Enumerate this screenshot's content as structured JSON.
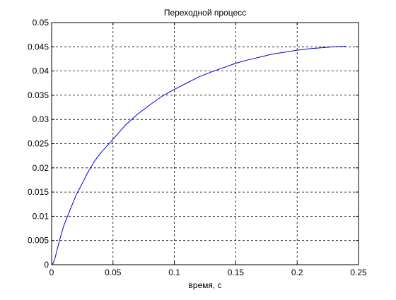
{
  "chart_data": {
    "type": "line",
    "title": "Переходной процесс",
    "xlabel": "время, с",
    "ylabel": "",
    "xlim": [
      0,
      0.25
    ],
    "ylim": [
      0,
      0.05
    ],
    "grid": true,
    "x_ticks": [
      0,
      0.05,
      0.1,
      0.15,
      0.2,
      0.25
    ],
    "x_tick_labels": [
      "0",
      "0.05",
      "0.1",
      "0.15",
      "0.2",
      "0.25"
    ],
    "y_ticks": [
      0,
      0.005,
      0.01,
      0.015,
      0.02,
      0.025,
      0.03,
      0.035,
      0.04,
      0.045,
      0.05
    ],
    "y_tick_labels": [
      "0",
      "0.005",
      "0.01",
      "0.015",
      "0.02",
      "0.025",
      "0.03",
      "0.035",
      "0.04",
      "0.045",
      "0.05"
    ],
    "series": [
      {
        "color": "#0000cc",
        "x": [
          0,
          0.001,
          0.002,
          0.003,
          0.005,
          0.0075,
          0.01,
          0.015,
          0.02,
          0.025,
          0.03,
          0.035,
          0.04,
          0.05,
          0.06,
          0.07,
          0.08,
          0.09,
          0.1,
          0.11,
          0.12,
          0.13,
          0.14,
          0.15,
          0.16,
          0.17,
          0.18,
          0.19,
          0.2,
          0.21,
          0.22,
          0.23,
          0.24
        ],
        "y": [
          0,
          0.0002,
          0.0008,
          0.0016,
          0.0036,
          0.006,
          0.0081,
          0.0113,
          0.0144,
          0.0168,
          0.0193,
          0.0214,
          0.0231,
          0.0259,
          0.0288,
          0.0311,
          0.033,
          0.0348,
          0.0362,
          0.0375,
          0.0388,
          0.0398,
          0.0407,
          0.0416,
          0.0423,
          0.0429,
          0.0435,
          0.0439,
          0.0443,
          0.0446,
          0.0448,
          0.045,
          0.0451
        ]
      }
    ]
  }
}
